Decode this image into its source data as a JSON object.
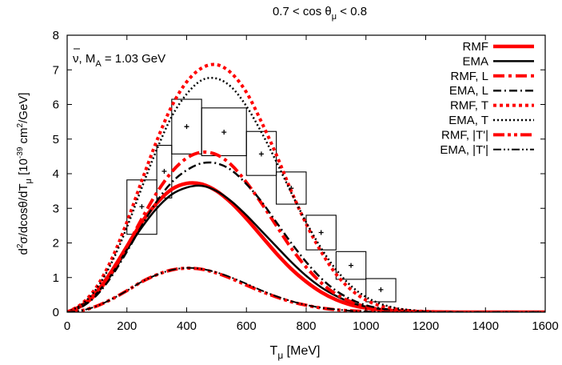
{
  "chart_data": {
    "type": "line",
    "title": "0.7 < cos θ_μ < 0.8",
    "title_parts": {
      "pre": "0.7 < cos θ",
      "sub": "μ",
      "post": " < 0.8"
    },
    "xlabel": "T_μ [MeV]",
    "xlabel_parts": {
      "pre": "T",
      "sub": "μ",
      "post": " [MeV]"
    },
    "ylabel": "d²σ/dcosθ/dT_μ [10⁻³⁹ cm²/GeV]",
    "ylabel_parts": {
      "a": "d",
      "a_sup": "2",
      "b": "σ/dcosθ/dT",
      "b_sub": "μ",
      "c": " [10",
      "c_sup": "-39",
      "d": " cm",
      "d_sup": "2",
      "e": "/GeV]"
    },
    "annotation": "ν̄, M_A = 1.03 GeV",
    "annotation_parts": {
      "nu": "ν",
      "mid": ", M",
      "sub": "A",
      "post": " = 1.03 GeV"
    },
    "xlim": [
      0,
      1600
    ],
    "ylim": [
      0,
      8
    ],
    "xticks": [
      0,
      200,
      400,
      600,
      800,
      1000,
      1200,
      1400,
      1600
    ],
    "yticks": [
      0,
      1,
      2,
      3,
      4,
      5,
      6,
      7,
      8
    ],
    "legend_position": "top-right",
    "grid": false,
    "x": [
      0,
      50,
      100,
      150,
      200,
      250,
      300,
      350,
      400,
      450,
      500,
      550,
      600,
      650,
      700,
      750,
      800,
      850,
      900,
      950,
      1000,
      1050,
      1100,
      1150,
      1200,
      1300,
      1400,
      1500,
      1600
    ],
    "series": [
      {
        "name": "RMF",
        "color": "#ff0000",
        "dash": "solid",
        "width": 4.5,
        "values": [
          0,
          0.2,
          0.6,
          1.2,
          1.9,
          2.6,
          3.15,
          3.55,
          3.72,
          3.7,
          3.5,
          3.15,
          2.7,
          2.2,
          1.7,
          1.25,
          0.88,
          0.58,
          0.36,
          0.21,
          0.12,
          0.07,
          0.04,
          0.02,
          0.01,
          0,
          0,
          0,
          0
        ]
      },
      {
        "name": "EMA",
        "color": "#000000",
        "dash": "solid",
        "width": 2.5,
        "values": [
          0,
          0.2,
          0.55,
          1.1,
          1.8,
          2.45,
          3.0,
          3.4,
          3.6,
          3.65,
          3.5,
          3.2,
          2.8,
          2.35,
          1.9,
          1.45,
          1.05,
          0.72,
          0.47,
          0.28,
          0.16,
          0.09,
          0.05,
          0.03,
          0.01,
          0,
          0,
          0,
          0
        ]
      },
      {
        "name": "RMF, L",
        "color": "#ff0000",
        "dash": "dashdot",
        "width": 4,
        "values": [
          0,
          0.18,
          0.55,
          1.15,
          1.9,
          2.7,
          3.45,
          4.05,
          4.45,
          4.62,
          4.55,
          4.25,
          3.75,
          3.15,
          2.5,
          1.85,
          1.3,
          0.85,
          0.52,
          0.3,
          0.16,
          0.08,
          0.04,
          0.02,
          0.01,
          0,
          0,
          0,
          0
        ]
      },
      {
        "name": "EMA, L",
        "color": "#000000",
        "dash": "dashdot",
        "width": 2.5,
        "values": [
          0,
          0.16,
          0.5,
          1.05,
          1.75,
          2.5,
          3.2,
          3.75,
          4.1,
          4.3,
          4.3,
          4.1,
          3.7,
          3.2,
          2.6,
          2.0,
          1.45,
          0.98,
          0.62,
          0.37,
          0.2,
          0.11,
          0.06,
          0.03,
          0.01,
          0,
          0,
          0,
          0
        ]
      },
      {
        "name": "RMF, T",
        "color": "#ff0000",
        "dash": "dotted",
        "width": 4,
        "values": [
          0,
          0.25,
          0.75,
          1.55,
          2.6,
          3.8,
          4.95,
          5.95,
          6.65,
          7.05,
          7.15,
          6.9,
          6.35,
          5.5,
          4.55,
          3.5,
          2.55,
          1.75,
          1.1,
          0.65,
          0.35,
          0.18,
          0.09,
          0.04,
          0.02,
          0,
          0,
          0,
          0
        ]
      },
      {
        "name": "EMA, T",
        "color": "#000000",
        "dash": "dotted",
        "width": 2.5,
        "values": [
          0,
          0.23,
          0.7,
          1.45,
          2.45,
          3.6,
          4.7,
          5.65,
          6.3,
          6.7,
          6.75,
          6.5,
          5.95,
          5.2,
          4.35,
          3.45,
          2.6,
          1.85,
          1.23,
          0.76,
          0.44,
          0.24,
          0.12,
          0.06,
          0.02,
          0,
          0,
          0,
          0
        ]
      },
      {
        "name": "RMF, |T'|",
        "color": "#ff0000",
        "dash": "dashdotdot",
        "width": 4,
        "values": [
          0,
          0.05,
          0.18,
          0.38,
          0.62,
          0.88,
          1.08,
          1.22,
          1.27,
          1.24,
          1.13,
          0.97,
          0.78,
          0.6,
          0.44,
          0.3,
          0.2,
          0.12,
          0.07,
          0.04,
          0.02,
          0.01,
          0,
          0,
          0,
          0,
          0,
          0,
          0
        ]
      },
      {
        "name": "EMA, |T'|",
        "color": "#000000",
        "dash": "dashdotdot",
        "width": 2,
        "values": [
          0,
          0.05,
          0.18,
          0.38,
          0.62,
          0.88,
          1.08,
          1.22,
          1.28,
          1.25,
          1.15,
          1.0,
          0.82,
          0.63,
          0.46,
          0.32,
          0.21,
          0.13,
          0.08,
          0.04,
          0.02,
          0.01,
          0,
          0,
          0,
          0,
          0,
          0,
          0
        ]
      }
    ],
    "measurements": [
      {
        "x_low": 200,
        "x_high": 300,
        "y": 3.05,
        "y_low": 2.25,
        "y_high": 3.82
      },
      {
        "x_low": 300,
        "x_high": 350,
        "y": 4.07,
        "y_low": 3.3,
        "y_high": 4.82
      },
      {
        "x_low": 350,
        "x_high": 450,
        "y": 5.36,
        "y_low": 4.57,
        "y_high": 6.15
      },
      {
        "x_low": 450,
        "x_high": 600,
        "y": 5.2,
        "y_low": 4.52,
        "y_high": 5.9
      },
      {
        "x_low": 600,
        "x_high": 700,
        "y": 4.57,
        "y_low": 3.95,
        "y_high": 5.22
      },
      {
        "x_low": 700,
        "x_high": 800,
        "y": 3.58,
        "y_low": 3.12,
        "y_high": 4.05
      },
      {
        "x_low": 800,
        "x_high": 900,
        "y": 2.3,
        "y_low": 1.8,
        "y_high": 2.8
      },
      {
        "x_low": 900,
        "x_high": 1000,
        "y": 1.35,
        "y_low": 0.95,
        "y_high": 1.75
      },
      {
        "x_low": 1000,
        "x_high": 1100,
        "y": 0.65,
        "y_low": 0.3,
        "y_high": 0.97
      }
    ]
  }
}
